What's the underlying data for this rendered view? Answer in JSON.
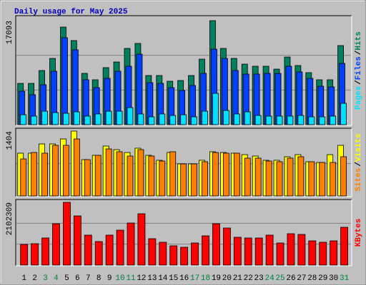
{
  "chart_data": [
    {
      "type": "bar",
      "title": "Daily usage for May 2025",
      "legend_separator": "/",
      "ylim": [
        0,
        17093
      ],
      "yticks": [
        17093
      ],
      "series": [
        {
          "name": "Hits",
          "color": "#00805c",
          "values": [
            6790,
            6790,
            8900,
            10890,
            16040,
            13820,
            8430,
            7380,
            9370,
            10300,
            12530,
            13350,
            8080,
            8080,
            7140,
            7260,
            8080,
            10770,
            17093,
            12530,
            10890,
            9950,
            9600,
            9600,
            9130,
            11120,
            9720,
            8550,
            7380,
            7380,
            13000
          ]
        },
        {
          "name": "Files",
          "color": "#0040ff",
          "values": [
            5500,
            4920,
            6560,
            8780,
            14290,
            12300,
            7380,
            6090,
            7610,
            8780,
            9600,
            11590,
            6910,
            6790,
            6090,
            5620,
            6440,
            8430,
            12410,
            10890,
            8900,
            8310,
            8310,
            8430,
            8430,
            9600,
            8670,
            7610,
            6320,
            6210,
            10070
          ]
        },
        {
          "name": "Pages",
          "color": "#00e0ff",
          "values": [
            1640,
            1410,
            2220,
            1990,
            1870,
            2110,
            1410,
            1760,
            2220,
            2220,
            2810,
            1760,
            1290,
            1760,
            1520,
            1640,
            1290,
            2220,
            5150,
            2340,
            1760,
            2110,
            1520,
            1410,
            1410,
            1410,
            1520,
            1290,
            1290,
            1410,
            3510
          ]
        }
      ]
    },
    {
      "type": "bar",
      "legend_separator": "/",
      "ylim": [
        0,
        1404
      ],
      "yticks": [
        1404
      ],
      "series": [
        {
          "name": "Visits",
          "color": "#ffff00",
          "values": [
            926,
            926,
            1126,
            1126,
            1234,
            1404,
            787,
            880,
            1080,
            1003,
            941,
            1034,
            880,
            772,
            941,
            694,
            694,
            772,
            957,
            941,
            926,
            895,
            864,
            772,
            772,
            849,
            895,
            741,
            725,
            895,
            1096
          ]
        },
        {
          "name": "Sites",
          "color": "#ff8000",
          "values": [
            802,
            941,
            926,
            1096,
            1096,
            1234,
            787,
            880,
            1018,
            957,
            864,
            1003,
            864,
            756,
            957,
            694,
            694,
            741,
            941,
            926,
            926,
            818,
            818,
            756,
            741,
            818,
            849,
            741,
            725,
            725,
            849
          ]
        }
      ]
    },
    {
      "type": "bar",
      "ylim": [
        0,
        2102309
      ],
      "yticks": [
        2102309
      ],
      "categories": [
        "1",
        "2",
        "3",
        "4",
        "5",
        "6",
        "7",
        "8",
        "9",
        "10",
        "11",
        "12",
        "13",
        "14",
        "15",
        "16",
        "17",
        "18",
        "19",
        "20",
        "21",
        "22",
        "23",
        "24",
        "25",
        "26",
        "27",
        "28",
        "29",
        "30",
        "31"
      ],
      "highlighted": [
        2,
        3,
        9,
        10,
        16,
        17,
        23,
        24,
        30
      ],
      "highlight_color": "#008040",
      "series": [
        {
          "name": "KBytes",
          "color": "#ff0000",
          "values": [
            692800,
            716700,
            907800,
            1385600,
            2102309,
            1648400,
            1003400,
            788400,
            1003400,
            1170600,
            1409500,
            1720100,
            883900,
            764500,
            645000,
            597300,
            740600,
            979500,
            1385600,
            1242300,
            931700,
            907800,
            907800,
            1003400,
            740600,
            1051200,
            1027300,
            812300,
            764500,
            812300,
            1266200
          ]
        }
      ]
    }
  ]
}
